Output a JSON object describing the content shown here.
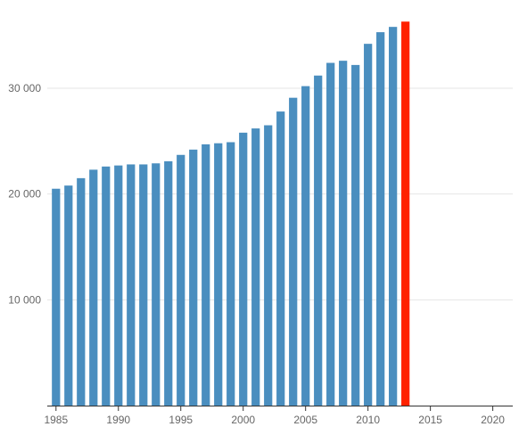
{
  "chart_data": {
    "type": "bar",
    "title": "",
    "xlabel": "",
    "ylabel": "",
    "x": [
      1985,
      1986,
      1987,
      1988,
      1989,
      1990,
      1991,
      1992,
      1993,
      1994,
      1995,
      1996,
      1997,
      1998,
      1999,
      2000,
      2001,
      2002,
      2003,
      2004,
      2005,
      2006,
      2007,
      2008,
      2009,
      2010,
      2011,
      2012,
      2013
    ],
    "values": [
      20500,
      20800,
      21500,
      22300,
      22600,
      22700,
      22800,
      22800,
      22900,
      23100,
      23700,
      24200,
      24700,
      24800,
      24900,
      25800,
      26200,
      26500,
      27800,
      29100,
      30200,
      31200,
      32400,
      32600,
      32200,
      34200,
      35300,
      35800,
      36300
    ],
    "highlight": {
      "x": 2013,
      "color": "#ff2200"
    },
    "bar_color": "#4a8ebf",
    "xlim": [
      1984.3,
      2021.6
    ],
    "ylim": [
      0,
      37500
    ],
    "x_ticks": [
      1985,
      1990,
      1995,
      2000,
      2005,
      2010,
      2015,
      2020
    ],
    "x_tick_labels": [
      "1985",
      "1990",
      "1995",
      "2000",
      "2005",
      "2010",
      "2015",
      "2020"
    ],
    "y_ticks": [
      10000,
      20000,
      30000
    ],
    "y_tick_labels": [
      "10 000",
      "20 000",
      "30 000"
    ],
    "grid": true,
    "legend": "none"
  }
}
